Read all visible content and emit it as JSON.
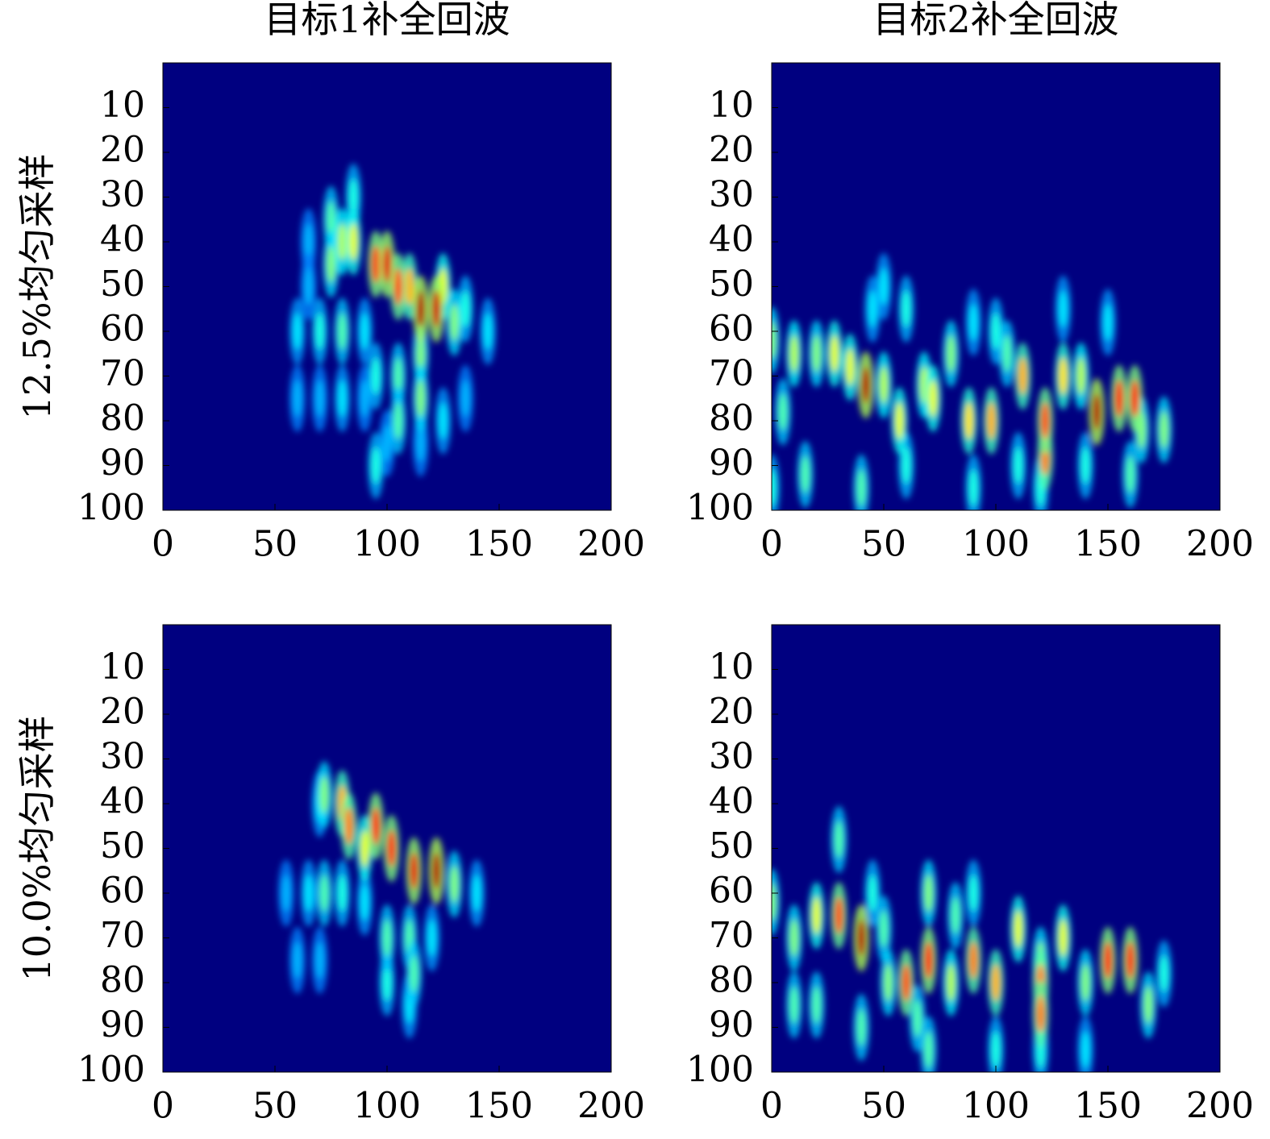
{
  "chart_data": [
    {
      "type": "heatmap",
      "title": "目标1补全回波",
      "ylabel": "12.5%均匀采样",
      "xlim": [
        0,
        200
      ],
      "ylim": [
        0,
        100
      ],
      "xticks": [
        0,
        50,
        100,
        150,
        200
      ],
      "yticks": [
        10,
        20,
        30,
        40,
        50,
        60,
        70,
        80,
        90,
        100
      ],
      "clim": [
        0,
        1
      ],
      "points": [
        {
          "x": 60,
          "y": 75,
          "z": 0.3
        },
        {
          "x": 70,
          "y": 75,
          "z": 0.3
        },
        {
          "x": 80,
          "y": 75,
          "z": 0.35
        },
        {
          "x": 90,
          "y": 75,
          "z": 0.3
        },
        {
          "x": 125,
          "y": 80,
          "z": 0.35
        },
        {
          "x": 135,
          "y": 75,
          "z": 0.3
        },
        {
          "x": 115,
          "y": 85,
          "z": 0.3
        },
        {
          "x": 100,
          "y": 85,
          "z": 0.3
        },
        {
          "x": 95,
          "y": 90,
          "z": 0.4
        },
        {
          "x": 65,
          "y": 40,
          "z": 0.3
        },
        {
          "x": 65,
          "y": 50,
          "z": 0.3
        },
        {
          "x": 60,
          "y": 60,
          "z": 0.35
        },
        {
          "x": 70,
          "y": 60,
          "z": 0.4
        },
        {
          "x": 80,
          "y": 60,
          "z": 0.45
        },
        {
          "x": 90,
          "y": 60,
          "z": 0.35
        },
        {
          "x": 145,
          "y": 60,
          "z": 0.35
        },
        {
          "x": 95,
          "y": 70,
          "z": 0.4
        },
        {
          "x": 105,
          "y": 70,
          "z": 0.45
        },
        {
          "x": 115,
          "y": 65,
          "z": 0.5
        },
        {
          "x": 115,
          "y": 75,
          "z": 0.5
        },
        {
          "x": 105,
          "y": 80,
          "z": 0.45
        },
        {
          "x": 85,
          "y": 30,
          "z": 0.4
        },
        {
          "x": 75,
          "y": 35,
          "z": 0.45
        },
        {
          "x": 75,
          "y": 45,
          "z": 0.5
        },
        {
          "x": 80,
          "y": 40,
          "z": 0.55
        },
        {
          "x": 85,
          "y": 40,
          "z": 0.6
        },
        {
          "x": 135,
          "y": 55,
          "z": 0.4
        },
        {
          "x": 130,
          "y": 58,
          "z": 0.5
        },
        {
          "x": 125,
          "y": 50,
          "z": 0.6
        },
        {
          "x": 110,
          "y": 50,
          "z": 0.7
        },
        {
          "x": 105,
          "y": 50,
          "z": 0.8
        },
        {
          "x": 95,
          "y": 45,
          "z": 0.85
        },
        {
          "x": 100,
          "y": 45,
          "z": 0.9
        },
        {
          "x": 122,
          "y": 55,
          "z": 0.92
        },
        {
          "x": 115,
          "y": 55,
          "z": 0.95
        }
      ]
    },
    {
      "type": "heatmap",
      "title": "目标2补全回波",
      "xlim": [
        0,
        200
      ],
      "ylim": [
        0,
        100
      ],
      "xticks": [
        0,
        50,
        100,
        150,
        200
      ],
      "yticks": [
        10,
        20,
        30,
        40,
        50,
        60,
        70,
        80,
        90,
        100
      ],
      "clim": [
        0,
        1
      ],
      "points": [
        {
          "x": 45,
          "y": 55,
          "z": 0.35
        },
        {
          "x": 50,
          "y": 50,
          "z": 0.35
        },
        {
          "x": 60,
          "y": 55,
          "z": 0.4
        },
        {
          "x": 90,
          "y": 58,
          "z": 0.35
        },
        {
          "x": 100,
          "y": 60,
          "z": 0.4
        },
        {
          "x": 105,
          "y": 65,
          "z": 0.45
        },
        {
          "x": 130,
          "y": 55,
          "z": 0.35
        },
        {
          "x": 150,
          "y": 58,
          "z": 0.35
        },
        {
          "x": 110,
          "y": 90,
          "z": 0.4
        },
        {
          "x": 140,
          "y": 90,
          "z": 0.4
        },
        {
          "x": 160,
          "y": 92,
          "z": 0.45
        },
        {
          "x": 120,
          "y": 95,
          "z": 0.4
        },
        {
          "x": 90,
          "y": 95,
          "z": 0.4
        },
        {
          "x": 15,
          "y": 92,
          "z": 0.45
        },
        {
          "x": 0,
          "y": 95,
          "z": 0.4
        },
        {
          "x": 40,
          "y": 95,
          "z": 0.45
        },
        {
          "x": 60,
          "y": 90,
          "z": 0.4
        },
        {
          "x": 0,
          "y": 62,
          "z": 0.5
        },
        {
          "x": 10,
          "y": 65,
          "z": 0.55
        },
        {
          "x": 20,
          "y": 65,
          "z": 0.5
        },
        {
          "x": 28,
          "y": 65,
          "z": 0.6
        },
        {
          "x": 35,
          "y": 68,
          "z": 0.6
        },
        {
          "x": 50,
          "y": 72,
          "z": 0.55
        },
        {
          "x": 57,
          "y": 80,
          "z": 0.6
        },
        {
          "x": 68,
          "y": 72,
          "z": 0.55
        },
        {
          "x": 72,
          "y": 75,
          "z": 0.6
        },
        {
          "x": 80,
          "y": 65,
          "z": 0.5
        },
        {
          "x": 88,
          "y": 80,
          "z": 0.65
        },
        {
          "x": 98,
          "y": 80,
          "z": 0.7
        },
        {
          "x": 112,
          "y": 70,
          "z": 0.7
        },
        {
          "x": 130,
          "y": 70,
          "z": 0.65
        },
        {
          "x": 138,
          "y": 70,
          "z": 0.55
        },
        {
          "x": 165,
          "y": 82,
          "z": 0.5
        },
        {
          "x": 175,
          "y": 82,
          "z": 0.5
        },
        {
          "x": 5,
          "y": 78,
          "z": 0.45
        },
        {
          "x": 122,
          "y": 88,
          "z": 0.75
        },
        {
          "x": 122,
          "y": 80,
          "z": 0.8
        },
        {
          "x": 155,
          "y": 75,
          "z": 0.85
        },
        {
          "x": 162,
          "y": 75,
          "z": 0.85
        },
        {
          "x": 42,
          "y": 72,
          "z": 0.95
        },
        {
          "x": 145,
          "y": 78,
          "z": 0.95
        }
      ]
    },
    {
      "type": "heatmap",
      "ylabel": "10.0%均匀采样",
      "xlim": [
        0,
        200
      ],
      "ylim": [
        0,
        100
      ],
      "xticks": [
        0,
        50,
        100,
        150,
        200
      ],
      "yticks": [
        10,
        20,
        30,
        40,
        50,
        60,
        70,
        80,
        90,
        100
      ],
      "clim": [
        0,
        1
      ],
      "points": [
        {
          "x": 60,
          "y": 75,
          "z": 0.3
        },
        {
          "x": 70,
          "y": 75,
          "z": 0.3
        },
        {
          "x": 55,
          "y": 60,
          "z": 0.3
        },
        {
          "x": 110,
          "y": 85,
          "z": 0.35
        },
        {
          "x": 100,
          "y": 80,
          "z": 0.4
        },
        {
          "x": 120,
          "y": 70,
          "z": 0.35
        },
        {
          "x": 70,
          "y": 40,
          "z": 0.35
        },
        {
          "x": 65,
          "y": 60,
          "z": 0.35
        },
        {
          "x": 72,
          "y": 60,
          "z": 0.45
        },
        {
          "x": 80,
          "y": 60,
          "z": 0.4
        },
        {
          "x": 90,
          "y": 62,
          "z": 0.35
        },
        {
          "x": 100,
          "y": 70,
          "z": 0.45
        },
        {
          "x": 110,
          "y": 70,
          "z": 0.45
        },
        {
          "x": 112,
          "y": 78,
          "z": 0.45
        },
        {
          "x": 140,
          "y": 60,
          "z": 0.35
        },
        {
          "x": 130,
          "y": 58,
          "z": 0.5
        },
        {
          "x": 72,
          "y": 38,
          "z": 0.5
        },
        {
          "x": 90,
          "y": 50,
          "z": 0.6
        },
        {
          "x": 80,
          "y": 40,
          "z": 0.7
        },
        {
          "x": 83,
          "y": 45,
          "z": 0.75
        },
        {
          "x": 95,
          "y": 45,
          "z": 0.85
        },
        {
          "x": 102,
          "y": 50,
          "z": 0.85
        },
        {
          "x": 112,
          "y": 55,
          "z": 0.9
        },
        {
          "x": 122,
          "y": 55,
          "z": 0.95
        }
      ]
    },
    {
      "type": "heatmap",
      "xlim": [
        0,
        200
      ],
      "ylim": [
        0,
        100
      ],
      "xticks": [
        0,
        50,
        100,
        150,
        200
      ],
      "yticks": [
        10,
        20,
        30,
        40,
        50,
        60,
        70,
        80,
        90,
        100
      ],
      "clim": [
        0,
        1
      ],
      "points": [
        {
          "x": 140,
          "y": 95,
          "z": 0.35
        },
        {
          "x": 100,
          "y": 95,
          "z": 0.4
        },
        {
          "x": 120,
          "y": 95,
          "z": 0.4
        },
        {
          "x": 70,
          "y": 95,
          "z": 0.45
        },
        {
          "x": 40,
          "y": 90,
          "z": 0.45
        },
        {
          "x": 175,
          "y": 78,
          "z": 0.4
        },
        {
          "x": 45,
          "y": 60,
          "z": 0.4
        },
        {
          "x": 90,
          "y": 60,
          "z": 0.4
        },
        {
          "x": 30,
          "y": 48,
          "z": 0.45
        },
        {
          "x": 10,
          "y": 85,
          "z": 0.45
        },
        {
          "x": 20,
          "y": 85,
          "z": 0.45
        },
        {
          "x": 50,
          "y": 68,
          "z": 0.45
        },
        {
          "x": 65,
          "y": 88,
          "z": 0.45
        },
        {
          "x": 82,
          "y": 65,
          "z": 0.45
        },
        {
          "x": 0,
          "y": 62,
          "z": 0.5
        },
        {
          "x": 10,
          "y": 70,
          "z": 0.5
        },
        {
          "x": 52,
          "y": 80,
          "z": 0.5
        },
        {
          "x": 70,
          "y": 60,
          "z": 0.5
        },
        {
          "x": 120,
          "y": 75,
          "z": 0.5
        },
        {
          "x": 140,
          "y": 80,
          "z": 0.5
        },
        {
          "x": 168,
          "y": 85,
          "z": 0.5
        },
        {
          "x": 20,
          "y": 65,
          "z": 0.6
        },
        {
          "x": 80,
          "y": 80,
          "z": 0.55
        },
        {
          "x": 110,
          "y": 68,
          "z": 0.6
        },
        {
          "x": 130,
          "y": 70,
          "z": 0.6
        },
        {
          "x": 100,
          "y": 80,
          "z": 0.7
        },
        {
          "x": 90,
          "y": 75,
          "z": 0.75
        },
        {
          "x": 120,
          "y": 80,
          "z": 0.75
        },
        {
          "x": 120,
          "y": 87,
          "z": 0.75
        },
        {
          "x": 30,
          "y": 65,
          "z": 0.8
        },
        {
          "x": 60,
          "y": 80,
          "z": 0.8
        },
        {
          "x": 70,
          "y": 75,
          "z": 0.85
        },
        {
          "x": 150,
          "y": 75,
          "z": 0.85
        },
        {
          "x": 160,
          "y": 75,
          "z": 0.85
        },
        {
          "x": 40,
          "y": 70,
          "z": 0.95
        }
      ]
    }
  ]
}
